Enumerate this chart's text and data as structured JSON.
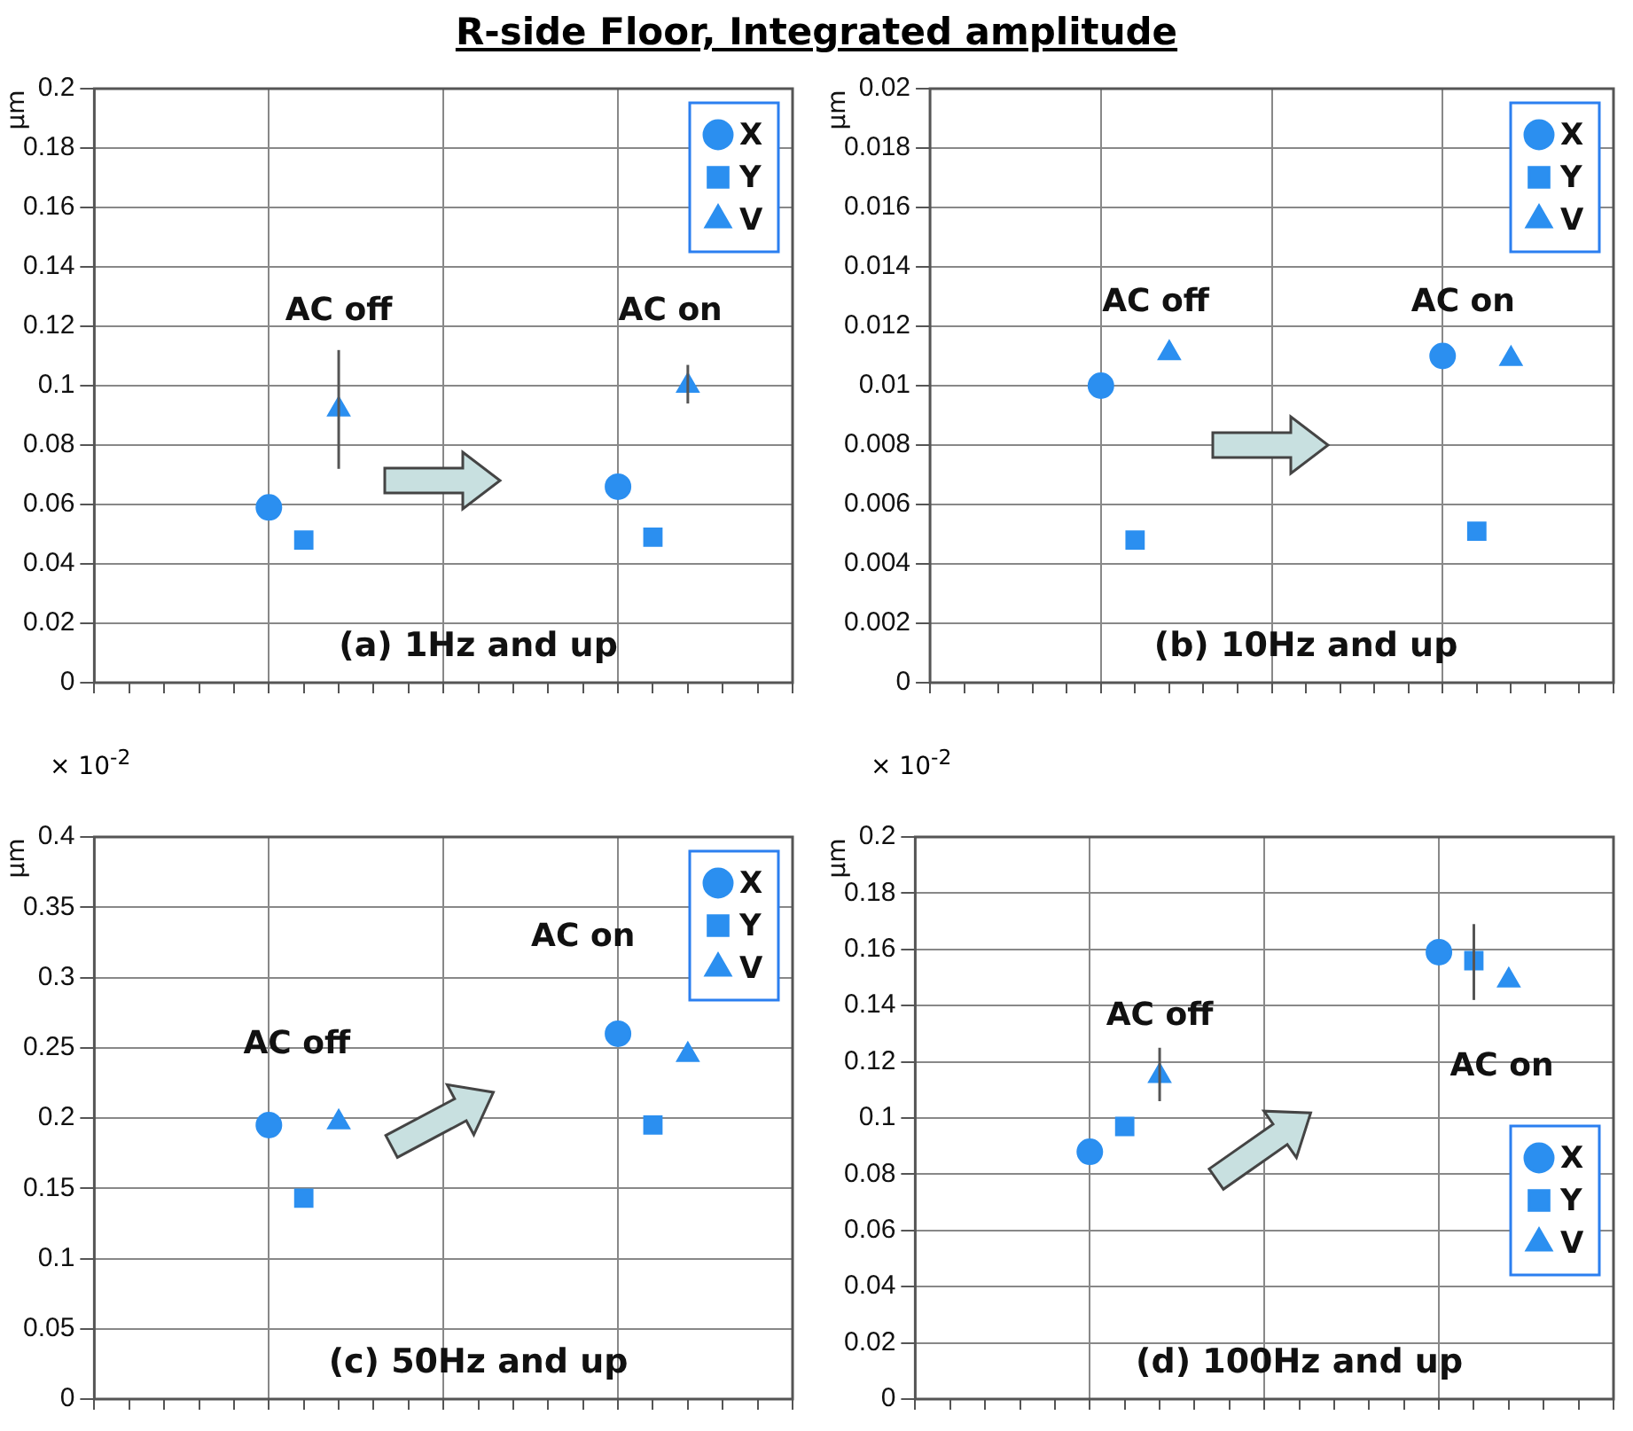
{
  "chart_data": [
    {
      "type": "scatter",
      "title": "R-side Floor, Integrated amplitude",
      "ylabel": "µm",
      "categories": [
        null,
        null,
        null,
        null,
        null,
        null,
        null,
        null,
        null,
        null,
        null,
        null,
        null,
        null,
        null,
        null,
        null,
        null,
        null
      ],
      "ylim": [
        0,
        0.2
      ],
      "yticks": [
        0,
        0.02,
        0.04,
        0.06,
        0.08,
        0.1,
        0.12,
        0.14,
        0.16,
        0.18,
        0.2
      ],
      "tick_labels": "y",
      "grid": true,
      "legend": "top right",
      "series": [
        {
          "name": "X",
          "color": "#2b8ff0",
          "marker": "circle",
          "values": [
            null,
            null,
            null,
            null,
            0.059,
            null,
            null,
            null,
            null,
            null,
            null,
            null,
            null,
            null,
            0.066,
            null,
            null,
            null,
            null
          ]
        },
        {
          "name": "Y",
          "color": "#2b8ff0",
          "marker": "square",
          "values": [
            null,
            null,
            null,
            null,
            null,
            0.048,
            null,
            null,
            null,
            null,
            null,
            null,
            null,
            null,
            null,
            0.049,
            null,
            null,
            null
          ]
        },
        {
          "name": "V",
          "color": "#2b8ff0",
          "marker": "triangle",
          "values": [
            null,
            null,
            null,
            null,
            null,
            null,
            0.092,
            null,
            null,
            null,
            null,
            null,
            null,
            null,
            null,
            null,
            0.1,
            null,
            null
          ],
          "errors": [
            null,
            null,
            null,
            null,
            null,
            null,
            [
              0.072,
              0.112
            ],
            null,
            null,
            null,
            null,
            null,
            null,
            null,
            null,
            null,
            [
              0.094,
              0.107
            ],
            null,
            null
          ]
        }
      ],
      "annotations": [
        "AC off",
        "AC on",
        "(a) 1Hz and up"
      ]
    },
    {
      "type": "scatter",
      "ylabel": "µm",
      "categories": [
        null,
        null,
        null,
        null,
        null,
        null,
        null,
        null,
        null,
        null,
        null,
        null,
        null,
        null,
        null,
        null,
        null,
        null,
        null
      ],
      "ylim": [
        0,
        0.02
      ],
      "yticks": [
        0,
        0.002,
        0.004,
        0.006,
        0.008,
        0.01,
        0.012,
        0.014,
        0.016,
        0.018,
        0.02
      ],
      "tick_labels": "y",
      "grid": true,
      "legend": "top right",
      "series": [
        {
          "name": "X",
          "color": "#2b8ff0",
          "marker": "circle",
          "values": [
            null,
            null,
            null,
            null,
            0.01,
            null,
            null,
            null,
            null,
            null,
            null,
            null,
            null,
            null,
            0.011,
            null,
            null,
            null,
            null
          ]
        },
        {
          "name": "Y",
          "color": "#2b8ff0",
          "marker": "square",
          "values": [
            null,
            null,
            null,
            null,
            null,
            0.0048,
            null,
            null,
            null,
            null,
            null,
            null,
            null,
            null,
            null,
            0.0051,
            null,
            null,
            null
          ]
        },
        {
          "name": "V",
          "color": "#2b8ff0",
          "marker": "triangle",
          "values": [
            null,
            null,
            null,
            null,
            null,
            null,
            0.0111,
            null,
            null,
            null,
            null,
            null,
            null,
            null,
            null,
            null,
            0.0109,
            null,
            null
          ]
        }
      ],
      "annotations": [
        "AC off",
        "AC on",
        "(b) 10Hz and up"
      ]
    },
    {
      "type": "scatter",
      "ylabel": "µm",
      "categories": [
        null,
        null,
        null,
        null,
        null,
        null,
        null,
        null,
        null,
        null,
        null,
        null,
        null,
        null,
        null,
        null,
        null,
        null,
        null
      ],
      "ylim": [
        0,
        0.4
      ],
      "yticks": [
        0,
        0.05,
        0.1,
        0.15,
        0.2,
        0.25,
        0.3,
        0.35,
        0.4
      ],
      "tick_labels": "y",
      "grid": true,
      "legend": "top right",
      "series": [
        {
          "name": "X",
          "color": "#2b8ff0",
          "marker": "circle",
          "values": [
            null,
            null,
            null,
            null,
            0.195,
            null,
            null,
            null,
            null,
            null,
            null,
            null,
            null,
            null,
            0.26,
            null,
            null,
            null,
            null
          ]
        },
        {
          "name": "Y",
          "color": "#2b8ff0",
          "marker": "square",
          "values": [
            null,
            null,
            null,
            null,
            null,
            0.143,
            null,
            null,
            null,
            null,
            null,
            null,
            null,
            null,
            null,
            0.195,
            null,
            null,
            null
          ]
        },
        {
          "name": "V",
          "color": "#2b8ff0",
          "marker": "triangle",
          "values": [
            null,
            null,
            null,
            null,
            null,
            null,
            0.197,
            null,
            null,
            null,
            null,
            null,
            null,
            null,
            null,
            null,
            0.245,
            null,
            null
          ]
        }
      ],
      "annotations": [
        "× 10$^{-2}$",
        "AC off",
        "AC on",
        "(c) 50Hz and up"
      ]
    },
    {
      "type": "scatter",
      "ylabel": "µm",
      "categories": [
        null,
        null,
        null,
        null,
        null,
        null,
        null,
        null,
        null,
        null,
        null,
        null,
        null,
        null,
        null,
        null,
        null,
        null,
        null
      ],
      "ylim": [
        0,
        0.2
      ],
      "yticks": [
        0,
        0.02,
        0.04,
        0.06,
        0.08,
        0.1,
        0.12,
        0.14,
        0.16,
        0.18,
        0.2
      ],
      "tick_labels": "y",
      "grid": true,
      "legend": "bottom right",
      "series": [
        {
          "name": "X",
          "color": "#2b8ff0",
          "marker": "circle",
          "values": [
            null,
            null,
            null,
            null,
            0.088,
            null,
            null,
            null,
            null,
            null,
            null,
            null,
            null,
            null,
            0.159,
            null,
            null,
            null,
            null
          ]
        },
        {
          "name": "Y",
          "color": "#2b8ff0",
          "marker": "square",
          "values": [
            null,
            null,
            null,
            null,
            null,
            0.097,
            null,
            null,
            null,
            null,
            null,
            null,
            null,
            null,
            null,
            0.156,
            null,
            null,
            null
          ],
          "errors": [
            null,
            null,
            null,
            null,
            null,
            null,
            null,
            null,
            null,
            null,
            null,
            null,
            null,
            null,
            null,
            [
              0.142,
              0.169
            ],
            null,
            null,
            null
          ]
        },
        {
          "name": "V",
          "color": "#2b8ff0",
          "marker": "triangle",
          "values": [
            null,
            null,
            null,
            null,
            null,
            null,
            0.115,
            null,
            null,
            null,
            null,
            null,
            null,
            null,
            null,
            null,
            0.149,
            null,
            null
          ],
          "errors": [
            null,
            null,
            null,
            null,
            null,
            null,
            [
              0.106,
              0.125
            ],
            null,
            null,
            null,
            null,
            null,
            null,
            null,
            null,
            null,
            null,
            null,
            null
          ]
        }
      ],
      "annotations": [
        "× 10$^{-2}$",
        "AC off",
        "AC on",
        "(d) 100Hz and up"
      ]
    }
  ]
}
